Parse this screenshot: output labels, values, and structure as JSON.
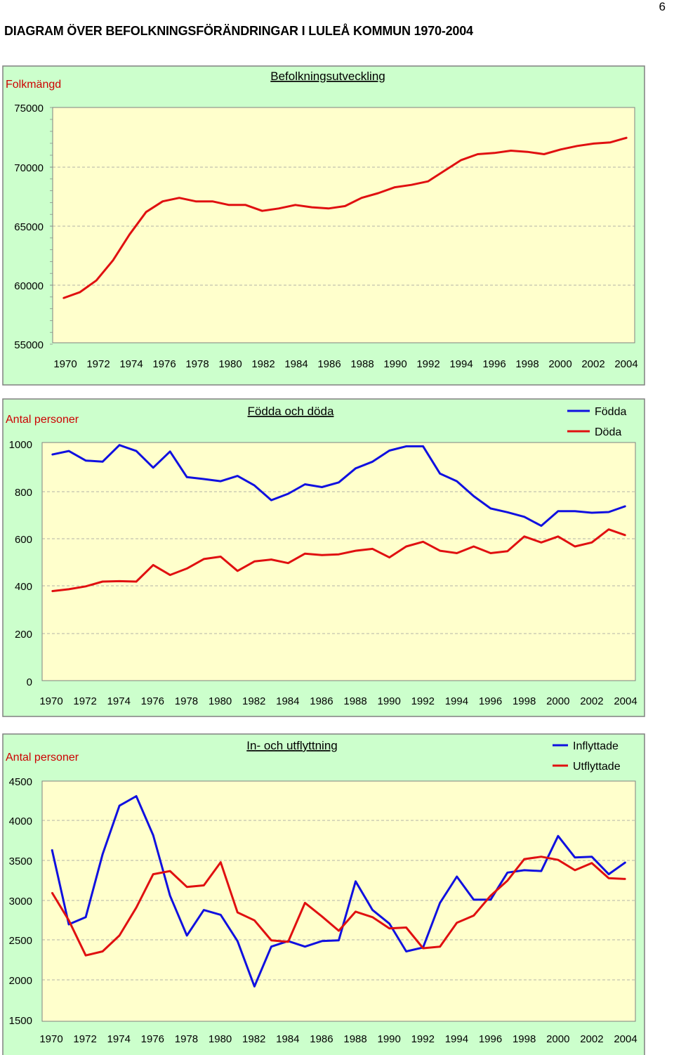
{
  "page_number": "6",
  "page_title": "DIAGRAM ÖVER BEFOLKNINGSFÖRÄNDRINGAR I LULEÅ KOMMUN 1970-2004",
  "colors": {
    "panel_bg": "#CCFFCC",
    "plot_bg": "#FFFFCC",
    "series_red": "#E01010",
    "series_blue": "#1010E0",
    "label_red": "#CC0000"
  },
  "chart_data": [
    {
      "type": "line",
      "title": "Befolkningsutveckling",
      "ylabel": "Folkmängd",
      "x": [
        1970,
        1971,
        1972,
        1973,
        1974,
        1975,
        1976,
        1977,
        1978,
        1979,
        1980,
        1981,
        1982,
        1983,
        1984,
        1985,
        1986,
        1987,
        1988,
        1989,
        1990,
        1991,
        1992,
        1993,
        1994,
        1995,
        1996,
        1997,
        1998,
        1999,
        2000,
        2001,
        2002,
        2003,
        2004
      ],
      "x_tick_labels": [
        "1970",
        "1972",
        "1974",
        "1976",
        "1978",
        "1980",
        "1982",
        "1984",
        "1986",
        "1988",
        "1990",
        "1992",
        "1994",
        "1996",
        "1998",
        "2000",
        "2002",
        "2004"
      ],
      "y_tick_labels": [
        "75000",
        "70000",
        "65000",
        "60000",
        "55000"
      ],
      "ylim": [
        55000,
        75000
      ],
      "grid": "dashed-horizontal",
      "legend": "none",
      "series": [
        {
          "color": "#E01010",
          "values": [
            58900,
            59400,
            60400,
            62100,
            64300,
            66200,
            67100,
            67400,
            67100,
            67100,
            66800,
            66800,
            66300,
            66500,
            66800,
            66600,
            66500,
            66700,
            67400,
            67800,
            68300,
            68500,
            68800,
            69700,
            70600,
            71100,
            71200,
            71400,
            71300,
            71100,
            71500,
            71800,
            72000,
            72100,
            72500
          ]
        }
      ]
    },
    {
      "type": "line",
      "title": "Födda och döda",
      "ylabel": "Antal personer",
      "x": [
        1970,
        1971,
        1972,
        1973,
        1974,
        1975,
        1976,
        1977,
        1978,
        1979,
        1980,
        1981,
        1982,
        1983,
        1984,
        1985,
        1986,
        1987,
        1988,
        1989,
        1990,
        1991,
        1992,
        1993,
        1994,
        1995,
        1996,
        1997,
        1998,
        1999,
        2000,
        2001,
        2002,
        2003,
        2004
      ],
      "x_tick_labels": [
        "1970",
        "1972",
        "1974",
        "1976",
        "1978",
        "1980",
        "1982",
        "1984",
        "1986",
        "1988",
        "1990",
        "1992",
        "1994",
        "1996",
        "1998",
        "2000",
        "2002",
        "2004"
      ],
      "y_tick_labels": [
        "1000",
        "800",
        "600",
        "400",
        "200",
        "0"
      ],
      "ylim": [
        0,
        1000
      ],
      "grid": "dashed-horizontal",
      "legend": "top-right",
      "series": [
        {
          "name": "Födda",
          "color": "#1010E0",
          "values": [
            955,
            970,
            930,
            925,
            995,
            970,
            900,
            968,
            860,
            852,
            843,
            865,
            825,
            763,
            790,
            830,
            818,
            838,
            897,
            925,
            972,
            990,
            990,
            875,
            843,
            780,
            728,
            712,
            693,
            655,
            717,
            717,
            710,
            713,
            738
          ]
        },
        {
          "name": "Döda",
          "color": "#E01010",
          "values": [
            380,
            388,
            400,
            420,
            422,
            420,
            490,
            448,
            475,
            515,
            525,
            465,
            505,
            513,
            498,
            538,
            532,
            535,
            550,
            558,
            522,
            568,
            588,
            550,
            540,
            568,
            540,
            548,
            610,
            585,
            610,
            568,
            585,
            640,
            615
          ]
        }
      ]
    },
    {
      "type": "line",
      "title": "In- och utflyttning",
      "ylabel": "Antal personer",
      "x": [
        1970,
        1971,
        1972,
        1973,
        1974,
        1975,
        1976,
        1977,
        1978,
        1979,
        1980,
        1981,
        1982,
        1983,
        1984,
        1985,
        1986,
        1987,
        1988,
        1989,
        1990,
        1991,
        1992,
        1993,
        1994,
        1995,
        1996,
        1997,
        1998,
        1999,
        2000,
        2001,
        2002,
        2003,
        2004
      ],
      "x_tick_labels": [
        "1970",
        "1972",
        "1974",
        "1976",
        "1978",
        "1980",
        "1982",
        "1984",
        "1986",
        "1988",
        "1990",
        "1992",
        "1994",
        "1996",
        "1998",
        "2000",
        "2002",
        "2004"
      ],
      "y_tick_labels": [
        "4500",
        "4000",
        "3500",
        "3000",
        "2500",
        "2000",
        "1500"
      ],
      "ylim": [
        1500,
        4500
      ],
      "grid": "dashed-horizontal",
      "legend": "top-right",
      "series": [
        {
          "name": "Inflyttade",
          "color": "#1010E0",
          "values": [
            3640,
            2700,
            2790,
            3580,
            4190,
            4310,
            3820,
            3060,
            2560,
            2880,
            2820,
            2490,
            1920,
            2420,
            2490,
            2420,
            2490,
            2500,
            3240,
            2880,
            2710,
            2360,
            2410,
            2970,
            3300,
            3010,
            3010,
            3350,
            3380,
            3370,
            3810,
            3540,
            3550,
            3330,
            3480
          ]
        },
        {
          "name": "Utflyttade",
          "color": "#E01010",
          "values": [
            3100,
            2750,
            2310,
            2360,
            2560,
            2910,
            3330,
            3370,
            3170,
            3190,
            3480,
            2850,
            2750,
            2500,
            2480,
            2970,
            2800,
            2620,
            2860,
            2790,
            2650,
            2660,
            2400,
            2420,
            2720,
            2810,
            3060,
            3250,
            3520,
            3550,
            3510,
            3380,
            3470,
            3280,
            3270
          ]
        }
      ]
    }
  ]
}
